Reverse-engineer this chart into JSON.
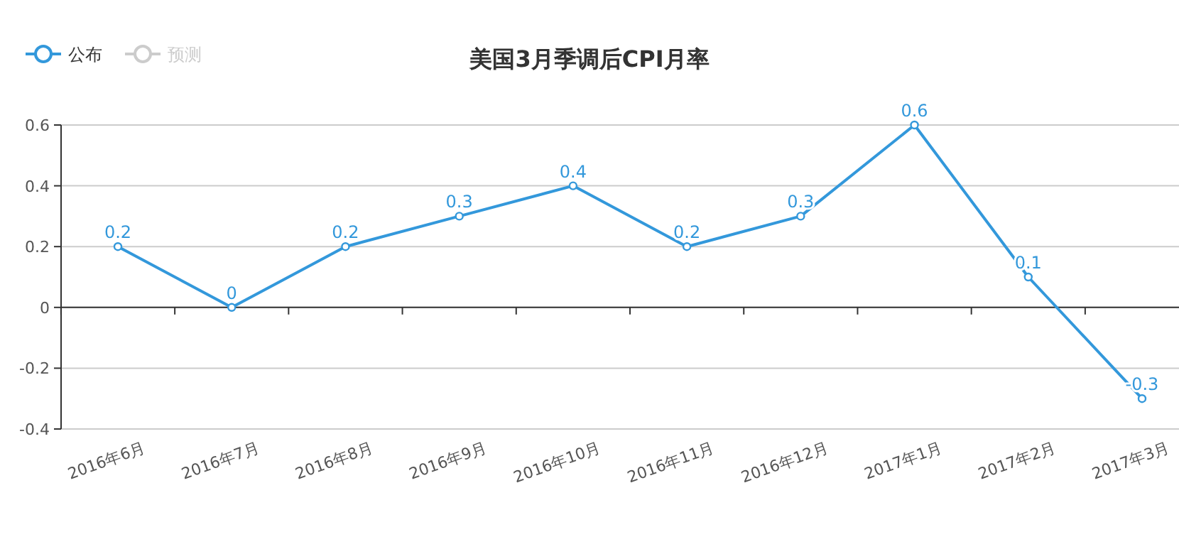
{
  "chart_data": {
    "type": "line",
    "title": "美国3月季调后CPI月率",
    "categories": [
      "2016年6月",
      "2016年7月",
      "2016年8月",
      "2016年9月",
      "2016年10月",
      "2016年11月",
      "2016年12月",
      "2017年1月",
      "2017年2月",
      "2017年3月"
    ],
    "series": [
      {
        "name": "公布",
        "color": "#3398db",
        "values": [
          0.2,
          0,
          0.2,
          0.3,
          0.4,
          0.2,
          0.3,
          0.6,
          0.1,
          -0.3
        ]
      },
      {
        "name": "预测",
        "color": "#cccccc",
        "values": [
          null,
          null,
          null,
          null,
          null,
          null,
          null,
          null,
          null,
          null
        ]
      }
    ],
    "ylim": [
      -0.4,
      0.6
    ],
    "yticks": [
      -0.4,
      -0.2,
      0,
      0.2,
      0.4,
      0.6
    ],
    "grid": "y",
    "legend": "top left",
    "marker": "circle",
    "line_style": "solid",
    "data_labels": true
  }
}
